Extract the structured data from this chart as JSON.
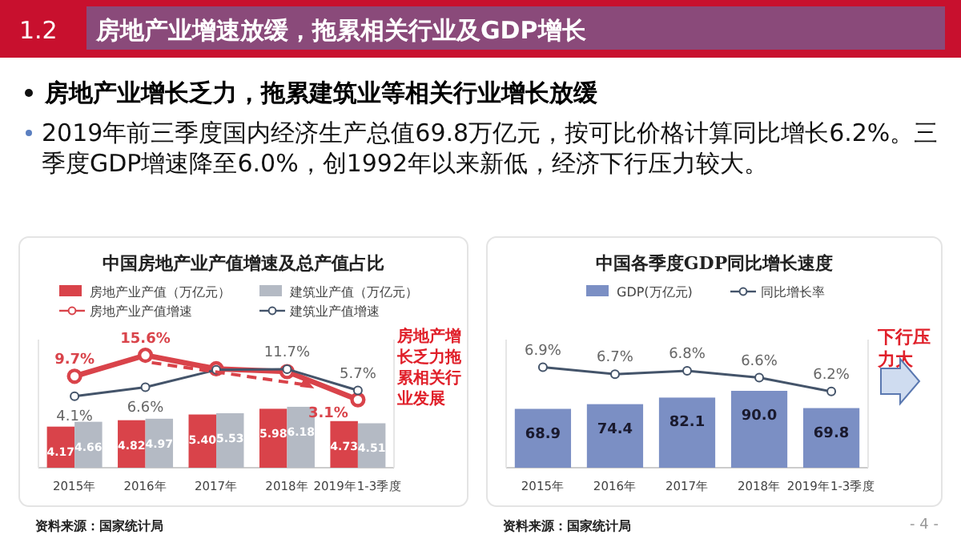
{
  "chart_data": [
    {
      "type": "other",
      "title": "房地产业增速放缓，拖累相关行业及GDP增长",
      "annotations": [
        "1.2",
        "房地产业增长乏力，拖累建筑业等相关行业增长放缓",
        "2019年前三季度国内经济生产总值69.8万亿元，按可比价格计算同比增长6.2%。三季度GDP增速降至6.0%，创1992年以来新低，经济下行压力较大。",
        "- 4 -"
      ]
    },
    {
      "type": "bar",
      "title": "中国房地产业产值增速及总产值占比",
      "categories": [
        "2015年",
        "2016年",
        "2017年",
        "2018年",
        "2019年1-3季度"
      ],
      "tick_labels": "x",
      "legend": "top",
      "ylim": [
        0,
        13
      ],
      "y2lim": [
        -16,
        20
      ],
      "series": [
        {
          "name": "房地产业产值（万亿元）",
          "color": "#d9434a",
          "values": [
            4.17,
            4.82,
            5.4,
            5.98,
            4.73
          ],
          "value_labels": [
            "4.17",
            "4.82",
            "5.40",
            "5.98",
            "4.73"
          ]
        },
        {
          "name": "建筑业产值（万亿元）",
          "color": "#b4bac4",
          "values": [
            4.66,
            4.97,
            5.53,
            6.18,
            4.51
          ],
          "value_labels": [
            "4.66",
            "4.97",
            "5.53",
            "6.18",
            "4.51"
          ]
        },
        {
          "name": "房地产业产值增速",
          "type": "line",
          "axis": "y2",
          "marker": "circle",
          "color": "#d9434a",
          "values": [
            9.7,
            15.6,
            11.8,
            11.0,
            3.1
          ],
          "value_labels": [
            "9.7%",
            "15.6%",
            null,
            null,
            "3.1%"
          ]
        },
        {
          "name": "建筑业产值增速",
          "type": "line",
          "axis": "y2",
          "marker": "circle",
          "color": "#44546a",
          "values": [
            4.1,
            6.6,
            11.5,
            11.7,
            5.7
          ],
          "value_labels": [
            "4.1%",
            "6.6%",
            null,
            "11.7%",
            "5.7%"
          ]
        }
      ],
      "annotations": [
        "房地产增长乏力拖累相关行业发展",
        "资料来源：国家统计局"
      ]
    },
    {
      "type": "bar",
      "title": "中国各季度GDP同比增长速度",
      "categories": [
        "2015年",
        "2016年",
        "2017年",
        "2018年",
        "2019年1-3季度"
      ],
      "tick_labels": "x",
      "legend": "top",
      "ylim": [
        0,
        150
      ],
      "y2lim": [
        4,
        7.7
      ],
      "series": [
        {
          "name": "GDP(万亿元)",
          "color": "#7b8fc4",
          "values": [
            68.9,
            74.4,
            82.1,
            90.0,
            69.8
          ],
          "value_labels": [
            "68.9",
            "74.4",
            "82.1",
            "90.0",
            "69.8"
          ]
        },
        {
          "name": "同比增长率",
          "type": "line",
          "axis": "y2",
          "marker": "circle",
          "color": "#44546a",
          "values": [
            6.9,
            6.7,
            6.8,
            6.6,
            6.2
          ],
          "value_labels": [
            "6.9%",
            "6.7%",
            "6.8%",
            "6.6%",
            "6.2%"
          ]
        }
      ],
      "annotations": [
        "下行压力大",
        "资料来源：国家统计局"
      ]
    }
  ]
}
